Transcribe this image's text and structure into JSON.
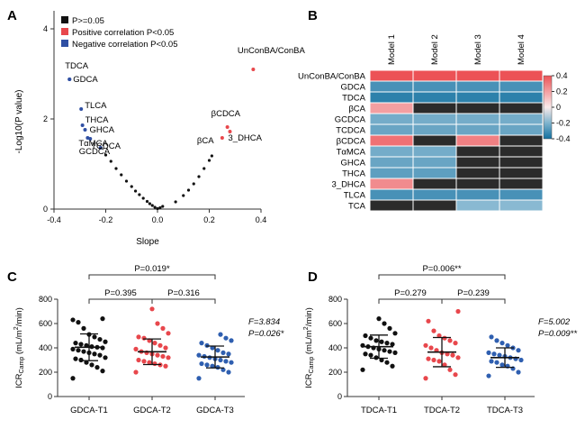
{
  "panel_letters": [
    "A",
    "B",
    "C",
    "D"
  ],
  "legend_a": [
    {
      "label": "P>=0.05",
      "color": "#111111"
    },
    {
      "label": "Positive correlation P<0.05",
      "color": "#e8474c"
    },
    {
      "label": "Negative correlation P<0.05",
      "color": "#2f4fa3"
    }
  ],
  "chart_data": [
    {
      "panel": "A",
      "type": "scatter",
      "title": "",
      "xlabel": "Slope",
      "ylabel": "-Log10(P value)",
      "xlim": [
        -0.4,
        0.4
      ],
      "ylim": [
        0,
        4.4
      ],
      "xticks": [
        "-0.4",
        "-0.2",
        "0.0",
        "0.2",
        "0.4"
      ],
      "yticks": [
        "0",
        "2",
        "4"
      ],
      "labeled_points": [
        {
          "label": "UnConBA/ConBA",
          "x": 0.37,
          "y": 3.1,
          "group": "pos"
        },
        {
          "label": "TDCA",
          "x": -0.34,
          "y": 2.88,
          "group": "neg"
        },
        {
          "label": "GDCA",
          "x": -0.34,
          "y": 2.88,
          "group": "neg"
        },
        {
          "label": "TLCA",
          "x": -0.295,
          "y": 2.22,
          "group": "neg"
        },
        {
          "label": "THCA",
          "x": -0.29,
          "y": 1.86,
          "group": "neg"
        },
        {
          "label": "GHCA",
          "x": -0.28,
          "y": 1.76,
          "group": "neg"
        },
        {
          "label": "TαMCA",
          "x": -0.27,
          "y": 1.58,
          "group": "neg"
        },
        {
          "label": "TCDCA",
          "x": -0.26,
          "y": 1.56,
          "group": "neg"
        },
        {
          "label": "GCDCA",
          "x": -0.22,
          "y": 1.36,
          "group": "neg"
        },
        {
          "label": "βCDCA",
          "x": 0.27,
          "y": 1.82,
          "group": "pos"
        },
        {
          "label": "βCA",
          "x": 0.25,
          "y": 1.58,
          "group": "pos"
        },
        {
          "label": "3_DHCA",
          "x": 0.28,
          "y": 1.72,
          "group": "pos"
        }
      ],
      "nonsig_points": [
        {
          "x": -0.2,
          "y": 1.2
        },
        {
          "x": -0.18,
          "y": 1.06
        },
        {
          "x": -0.16,
          "y": 0.9
        },
        {
          "x": -0.14,
          "y": 0.76
        },
        {
          "x": -0.12,
          "y": 0.62
        },
        {
          "x": -0.1,
          "y": 0.5
        },
        {
          "x": -0.085,
          "y": 0.4
        },
        {
          "x": -0.07,
          "y": 0.32
        },
        {
          "x": -0.055,
          "y": 0.24
        },
        {
          "x": -0.04,
          "y": 0.17
        },
        {
          "x": -0.03,
          "y": 0.12
        },
        {
          "x": -0.02,
          "y": 0.08
        },
        {
          "x": -0.01,
          "y": 0.04
        },
        {
          "x": 0.0,
          "y": 0.01
        },
        {
          "x": 0.01,
          "y": 0.03
        },
        {
          "x": 0.02,
          "y": 0.06
        },
        {
          "x": 0.07,
          "y": 0.16
        },
        {
          "x": 0.1,
          "y": 0.3
        },
        {
          "x": 0.12,
          "y": 0.42
        },
        {
          "x": 0.14,
          "y": 0.56
        },
        {
          "x": 0.16,
          "y": 0.72
        },
        {
          "x": 0.18,
          "y": 0.9
        },
        {
          "x": 0.2,
          "y": 1.08
        },
        {
          "x": 0.21,
          "y": 1.18
        }
      ]
    },
    {
      "panel": "B",
      "type": "heatmap",
      "columns": [
        "Model 1",
        "Model 2",
        "Model 3",
        "Model 4"
      ],
      "rows": [
        "UnConBA/ConBA",
        "GDCA",
        "TDCA",
        "βCA",
        "GCDCA",
        "TCDCA",
        "βCDCA",
        "TαMCA",
        "GHCA",
        "THCA",
        "3_DHCA",
        "TLCA",
        "TCA"
      ],
      "values": [
        [
          0.4,
          0.4,
          0.4,
          0.4
        ],
        [
          -0.3,
          -0.3,
          -0.3,
          -0.3
        ],
        [
          -0.35,
          -0.35,
          -0.35,
          -0.35
        ],
        [
          0.2,
          null,
          null,
          null
        ],
        [
          -0.22,
          -0.22,
          -0.22,
          -0.22
        ],
        [
          -0.24,
          -0.24,
          -0.24,
          -0.24
        ],
        [
          0.32,
          null,
          0.28,
          null
        ],
        [
          -0.22,
          -0.22,
          null,
          null
        ],
        [
          -0.24,
          -0.24,
          null,
          null
        ],
        [
          -0.26,
          -0.26,
          null,
          null
        ],
        [
          0.25,
          null,
          null,
          null
        ],
        [
          -0.3,
          -0.3,
          -0.3,
          -0.3
        ],
        [
          null,
          null,
          -0.18,
          -0.18
        ]
      ],
      "scale": {
        "min": -0.4,
        "max": 0.4,
        "ticks": [
          "0.4",
          "0.2",
          "0",
          "-0.2",
          "-0.4"
        ]
      },
      "nonsig_color": "#2b2b2b"
    },
    {
      "panel": "C",
      "type": "scatter",
      "categories": [
        "GDCA-T1",
        "GDCA-T2",
        "GDCA-T3"
      ],
      "colors": [
        "#111111",
        "#e8474c",
        "#2f5fb0"
      ],
      "ylim": [
        0,
        800
      ],
      "yticks": [
        "0",
        "200",
        "400",
        "600",
        "800"
      ],
      "ylabel": "ICRCamp (mL/m2/min)",
      "means": [
        405,
        368,
        325
      ],
      "sds": [
        110,
        105,
        90
      ],
      "values": [
        [
          150,
          210,
          240,
          260,
          280,
          300,
          310,
          320,
          340,
          350,
          360,
          370,
          380,
          390,
          400,
          405,
          410,
          420,
          430,
          440,
          450,
          470,
          490,
          510,
          560,
          610,
          630,
          640
        ],
        [
          200,
          250,
          260,
          270,
          280,
          290,
          300,
          320,
          330,
          340,
          350,
          360,
          370,
          390,
          400,
          420,
          440,
          460,
          480,
          490,
          520,
          560,
          600,
          720
        ],
        [
          150,
          200,
          220,
          240,
          250,
          260,
          270,
          280,
          290,
          300,
          310,
          320,
          330,
          340,
          350,
          360,
          380,
          400,
          420,
          440,
          460,
          480,
          510
        ]
      ],
      "brackets": [
        "P=0.019*",
        "P=0.395",
        "P=0.316"
      ],
      "stat_f": "F=3.834",
      "stat_p": "P=0.026*"
    },
    {
      "panel": "D",
      "type": "scatter",
      "categories": [
        "TDCA-T1",
        "TDCA-T2",
        "TDCA-T3"
      ],
      "colors": [
        "#111111",
        "#e8474c",
        "#2f5fb0"
      ],
      "ylim": [
        0,
        800
      ],
      "yticks": [
        "0",
        "200",
        "400",
        "600",
        "800"
      ],
      "ylabel": "ICRCamp (mL/m2/min)",
      "means": [
        410,
        365,
        320
      ],
      "sds": [
        95,
        120,
        80
      ],
      "values": [
        [
          220,
          250,
          280,
          300,
          320,
          340,
          350,
          360,
          370,
          380,
          390,
          400,
          410,
          420,
          430,
          440,
          450,
          460,
          480,
          500,
          520,
          560,
          600,
          640
        ],
        [
          150,
          180,
          220,
          260,
          290,
          300,
          310,
          320,
          340,
          350,
          360,
          380,
          400,
          420,
          440,
          460,
          480,
          500,
          540,
          620,
          700
        ],
        [
          170,
          200,
          230,
          250,
          260,
          280,
          290,
          300,
          310,
          320,
          330,
          340,
          350,
          360,
          380,
          400,
          420,
          440,
          460,
          490
        ]
      ],
      "brackets": [
        "P=0.006**",
        "P=0.279",
        "P=0.239"
      ],
      "stat_f": "F=5.002",
      "stat_p": "P=0.009**"
    }
  ]
}
